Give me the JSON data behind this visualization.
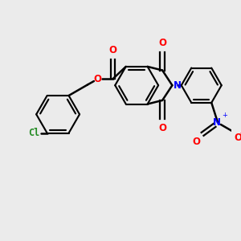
{
  "background_color": "#ebebeb",
  "bond_color": "#000000",
  "bond_width": 1.8,
  "atom_labels": {
    "Cl": {
      "color": "#228B22",
      "fontsize": 8.5,
      "fontweight": "bold"
    },
    "O": {
      "color": "#FF0000",
      "fontsize": 8.5,
      "fontweight": "bold"
    },
    "N": {
      "color": "#0000FF",
      "fontsize": 8.5,
      "fontweight": "bold"
    }
  },
  "figsize": [
    3.0,
    3.0
  ],
  "dpi": 100
}
